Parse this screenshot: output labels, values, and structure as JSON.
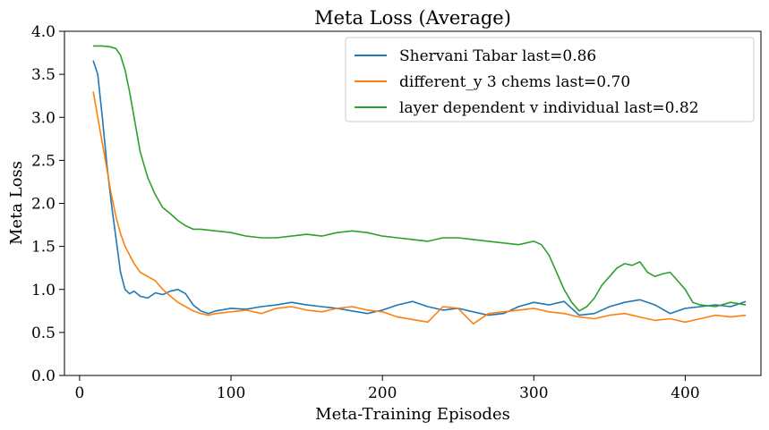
{
  "chart_data": {
    "type": "line",
    "title": "Meta Loss (Average)",
    "xlabel": "Meta-Training Episodes",
    "ylabel": "Meta Loss",
    "xlim": [
      -10,
      450
    ],
    "ylim": [
      0,
      4.0
    ],
    "xticks": [
      0,
      100,
      200,
      300,
      400
    ],
    "xtick_labels": [
      "0",
      "100",
      "200",
      "300",
      "400"
    ],
    "yticks": [
      0,
      0.5,
      1.0,
      1.5,
      2.0,
      2.5,
      3.0,
      3.5,
      4.0
    ],
    "ytick_labels": [
      "0.0",
      "0.5",
      "1.0",
      "1.5",
      "2.0",
      "2.5",
      "3.0",
      "3.5",
      "4.0"
    ],
    "grid": false,
    "legend_position": "top-right",
    "series": [
      {
        "name": "Shervani Tabar last=0.86",
        "color": "#1f77b4",
        "x": [
          9,
          12,
          15,
          18,
          21,
          24,
          27,
          30,
          33,
          36,
          40,
          45,
          50,
          55,
          60,
          65,
          70,
          75,
          80,
          85,
          90,
          100,
          110,
          120,
          130,
          140,
          150,
          160,
          170,
          180,
          190,
          200,
          210,
          220,
          230,
          240,
          250,
          260,
          270,
          280,
          290,
          300,
          310,
          320,
          330,
          340,
          350,
          360,
          370,
          380,
          390,
          400,
          410,
          420,
          430,
          440
        ],
        "y": [
          3.66,
          3.5,
          3.0,
          2.45,
          2.0,
          1.6,
          1.2,
          1.0,
          0.95,
          0.98,
          0.92,
          0.9,
          0.96,
          0.94,
          0.98,
          1.0,
          0.95,
          0.82,
          0.75,
          0.72,
          0.75,
          0.78,
          0.77,
          0.8,
          0.82,
          0.85,
          0.82,
          0.8,
          0.78,
          0.75,
          0.72,
          0.76,
          0.82,
          0.86,
          0.8,
          0.76,
          0.78,
          0.74,
          0.7,
          0.72,
          0.8,
          0.85,
          0.82,
          0.86,
          0.7,
          0.72,
          0.8,
          0.85,
          0.88,
          0.82,
          0.72,
          0.78,
          0.8,
          0.82,
          0.8,
          0.86
        ]
      },
      {
        "name": "different_y 3 chems last=0.70",
        "color": "#ff7f0e",
        "x": [
          9,
          12,
          15,
          18,
          21,
          24,
          27,
          30,
          33,
          36,
          40,
          45,
          50,
          55,
          60,
          65,
          70,
          75,
          80,
          85,
          90,
          100,
          110,
          120,
          130,
          140,
          150,
          160,
          170,
          180,
          190,
          200,
          210,
          220,
          230,
          240,
          250,
          260,
          270,
          280,
          290,
          300,
          310,
          320,
          330,
          340,
          350,
          360,
          370,
          380,
          390,
          400,
          410,
          420,
          430,
          440
        ],
        "y": [
          3.3,
          3.0,
          2.7,
          2.4,
          2.1,
          1.85,
          1.65,
          1.5,
          1.4,
          1.3,
          1.2,
          1.15,
          1.1,
          1.0,
          0.92,
          0.85,
          0.8,
          0.75,
          0.72,
          0.7,
          0.72,
          0.74,
          0.76,
          0.72,
          0.78,
          0.8,
          0.76,
          0.74,
          0.78,
          0.8,
          0.76,
          0.74,
          0.68,
          0.65,
          0.62,
          0.8,
          0.78,
          0.6,
          0.72,
          0.74,
          0.76,
          0.78,
          0.74,
          0.72,
          0.68,
          0.66,
          0.7,
          0.72,
          0.68,
          0.64,
          0.66,
          0.62,
          0.66,
          0.7,
          0.68,
          0.7
        ]
      },
      {
        "name": "layer dependent v individual last=0.82",
        "color": "#2ca02c",
        "x": [
          9,
          15,
          20,
          24,
          27,
          30,
          33,
          36,
          40,
          45,
          50,
          55,
          60,
          65,
          70,
          75,
          80,
          90,
          100,
          110,
          120,
          130,
          140,
          150,
          160,
          170,
          180,
          190,
          200,
          210,
          220,
          230,
          240,
          250,
          260,
          270,
          280,
          290,
          300,
          305,
          310,
          315,
          320,
          325,
          330,
          335,
          340,
          345,
          350,
          355,
          360,
          365,
          370,
          375,
          380,
          385,
          390,
          395,
          400,
          405,
          410,
          420,
          430,
          440
        ],
        "y": [
          3.83,
          3.83,
          3.82,
          3.8,
          3.72,
          3.55,
          3.3,
          3.0,
          2.6,
          2.3,
          2.1,
          1.95,
          1.88,
          1.8,
          1.74,
          1.7,
          1.7,
          1.68,
          1.66,
          1.62,
          1.6,
          1.6,
          1.62,
          1.64,
          1.62,
          1.66,
          1.68,
          1.66,
          1.62,
          1.6,
          1.58,
          1.56,
          1.6,
          1.6,
          1.58,
          1.56,
          1.54,
          1.52,
          1.56,
          1.52,
          1.4,
          1.2,
          1.0,
          0.85,
          0.75,
          0.8,
          0.9,
          1.05,
          1.15,
          1.25,
          1.3,
          1.28,
          1.32,
          1.2,
          1.15,
          1.18,
          1.2,
          1.1,
          1.0,
          0.85,
          0.82,
          0.8,
          0.85,
          0.82
        ]
      }
    ]
  }
}
